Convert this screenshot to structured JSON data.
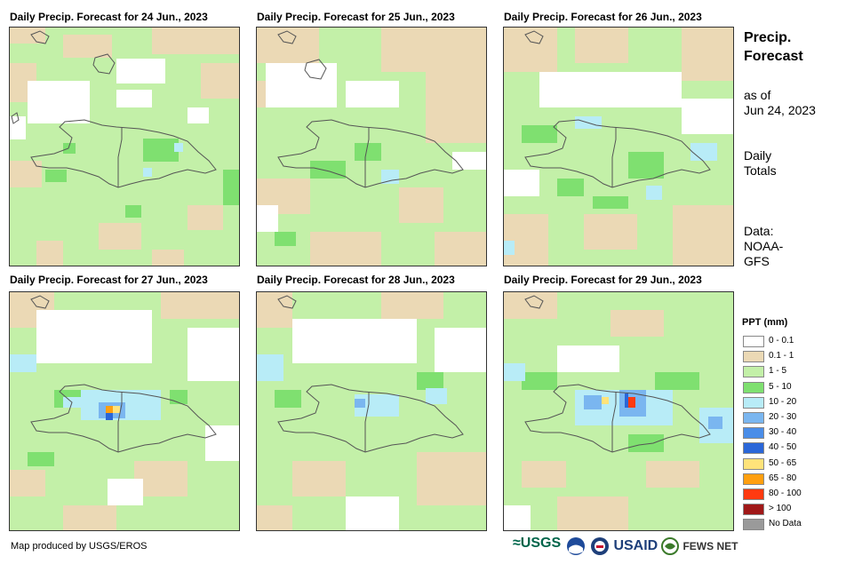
{
  "panels": [
    {
      "title": "Daily Precip. Forecast for 24 Jun., 2023"
    },
    {
      "title": "Daily Precip. Forecast for 25 Jun., 2023"
    },
    {
      "title": "Daily Precip. Forecast for 26 Jun., 2023"
    },
    {
      "title": "Daily Precip. Forecast for 27 Jun., 2023"
    },
    {
      "title": "Daily Precip. Forecast for 28 Jun., 2023"
    },
    {
      "title": "Daily Precip. Forecast for 29 Jun., 2023"
    }
  ],
  "side": {
    "title_line1": "Precip.",
    "title_line2": "Forecast",
    "asof_line1": "as of",
    "asof_line2": "Jun 24, 2023",
    "totals_line1": "Daily",
    "totals_line2": "Totals",
    "data_line1": "Data:",
    "data_line2": "NOAA-",
    "data_line3": "GFS"
  },
  "legend": {
    "title": "PPT (mm)",
    "items": [
      {
        "label": "0 - 0.1",
        "color": "#ffffff"
      },
      {
        "label": "0.1 - 1",
        "color": "#ebd9b5"
      },
      {
        "label": "1 - 5",
        "color": "#c3f0a8"
      },
      {
        "label": "5 - 10",
        "color": "#7fe070"
      },
      {
        "label": "10 - 20",
        "color": "#b8ecf7"
      },
      {
        "label": "20 - 30",
        "color": "#7ab6f0"
      },
      {
        "label": "30 - 40",
        "color": "#4a8de8"
      },
      {
        "label": "40 - 50",
        "color": "#2a66d8"
      },
      {
        "label": "50 - 65",
        "color": "#ffe37a"
      },
      {
        "label": "65 - 80",
        "color": "#ff9f10"
      },
      {
        "label": "80 - 100",
        "color": "#ff3a10"
      },
      {
        "label": "> 100",
        "color": "#a01818"
      },
      {
        "label": "No Data",
        "color": "#9a9a9a"
      }
    ]
  },
  "credit": "Map produced by USGS/EROS",
  "logos": {
    "usgs": "USGS",
    "usaid": "USAID",
    "fews": "FEWS NET"
  }
}
